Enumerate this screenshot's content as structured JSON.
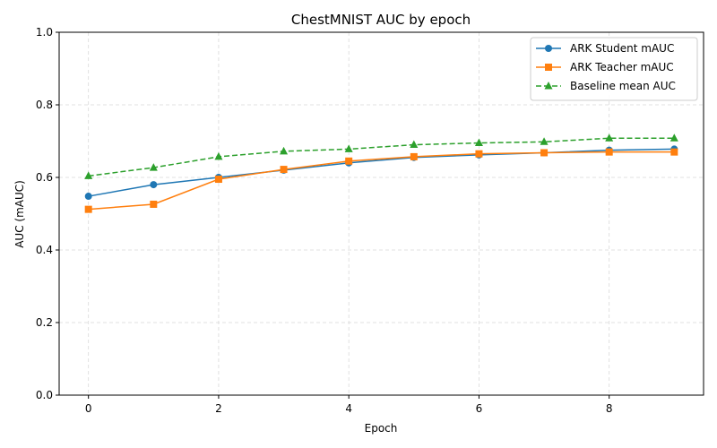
{
  "chart_data": {
    "type": "line",
    "title": "ChestMNIST AUC by epoch",
    "xlabel": "Epoch",
    "ylabel": "AUC (mAUC)",
    "x": [
      0,
      1,
      2,
      3,
      4,
      5,
      6,
      7,
      8,
      9
    ],
    "xlim": [
      -0.45,
      9.45
    ],
    "ylim": [
      0,
      1
    ],
    "xticks": [
      0,
      2,
      4,
      6,
      8
    ],
    "yticks": [
      0.0,
      0.2,
      0.4,
      0.6,
      0.8,
      1.0
    ],
    "xtick_labels": [
      "0",
      "2",
      "4",
      "6",
      "8"
    ],
    "ytick_labels": [
      "0.0",
      "0.2",
      "0.4",
      "0.6",
      "0.8",
      "1.0"
    ],
    "grid": true,
    "legend_position": "top-right",
    "series": [
      {
        "name": "ARK Student mAUC",
        "color": "#1f77b4",
        "marker": "circle",
        "linestyle": "solid",
        "values": [
          0.548,
          0.58,
          0.6,
          0.62,
          0.64,
          0.655,
          0.662,
          0.668,
          0.675,
          0.678
        ]
      },
      {
        "name": "ARK Teacher mAUC",
        "color": "#ff7f0e",
        "marker": "square",
        "linestyle": "solid",
        "values": [
          0.512,
          0.526,
          0.595,
          0.622,
          0.645,
          0.657,
          0.665,
          0.668,
          0.67,
          0.67
        ]
      },
      {
        "name": "Baseline mean AUC",
        "color": "#2ca02c",
        "marker": "triangle",
        "linestyle": "dashed",
        "values": [
          0.604,
          0.627,
          0.657,
          0.672,
          0.678,
          0.69,
          0.695,
          0.698,
          0.708,
          0.708
        ]
      }
    ]
  }
}
